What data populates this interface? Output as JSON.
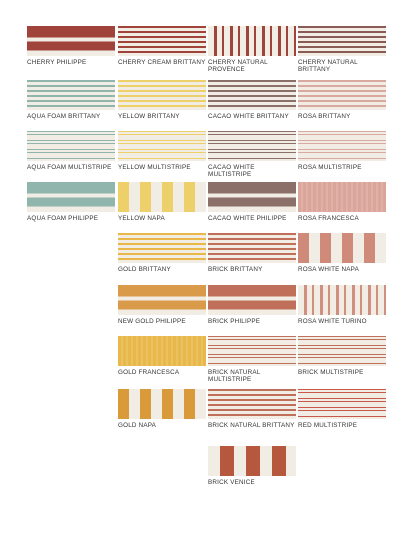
{
  "columns": [
    [
      "CHERRY PHILIPPE",
      "AQUA FOAM BRITTANY",
      "AQUA FOAM MULTISTRIPE",
      "AQUA FOAM PHILIPPE"
    ],
    [
      "CHERRY CREAM BRITTANY",
      "YELLOW BRITTANY",
      "YELLOW MULTISTRIPE",
      "YELLOW NAPA",
      "GOLD BRITTANY",
      "NEW GOLD PHILIPPE",
      "GOLD FRANCESCA",
      "GOLD NAPA"
    ],
    [
      "CHERRY NATURAL PROVENCE",
      "CACAO WHITE BRITTANY",
      "CACAO WHITE MULTISTRIPE",
      "CACAO WHITE PHILIPPE",
      "BRICK BRITTANY",
      "BRICK PHILIPPE",
      "BRICK NATURAL MULTISTRIPE",
      "BRICK NATURAL BRITTANY",
      "BRICK VENICE"
    ],
    [
      "CHERRY NATURAL BRITTANY",
      "ROSA BRITTANY",
      "ROSA MULTISTRIPE",
      "ROSA FRANCESCA",
      "ROSA WHITE NAPA",
      "ROSA WHITE TURINO",
      "BRICK MULTISTRIPE",
      "RED MULTISTRIPE"
    ]
  ]
}
